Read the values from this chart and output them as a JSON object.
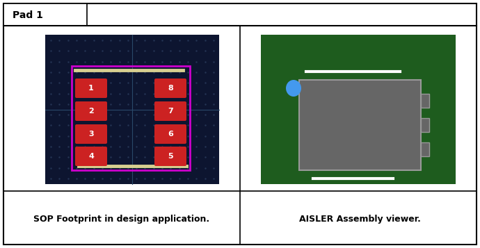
{
  "title": "Pad 1",
  "left_caption": "SOP Footprint in design application.",
  "right_caption": "AISLER Assembly viewer.",
  "bg_color": "#ffffff",
  "left_panel_bg": "#0d1530",
  "right_panel_bg": "#1e5c1e",
  "pads": [
    {
      "num": "1",
      "col": 0,
      "row": 0
    },
    {
      "num": "2",
      "col": 0,
      "row": 1
    },
    {
      "num": "3",
      "col": 0,
      "row": 2
    },
    {
      "num": "4",
      "col": 0,
      "row": 3
    },
    {
      "num": "8",
      "col": 1,
      "row": 0
    },
    {
      "num": "7",
      "col": 1,
      "row": 1
    },
    {
      "num": "6",
      "col": 1,
      "row": 2
    },
    {
      "num": "5",
      "col": 1,
      "row": 3
    }
  ],
  "pad_color": "#cc2222",
  "pad_text_color": "#ffffff",
  "crosshair_color": "#2a4a6a",
  "magenta_color": "#cc00cc",
  "yellow_color": "#d8d090",
  "gray_box_color": "#666666",
  "gray_outline_color": "#999999",
  "white_color": "#ffffff",
  "blue_dot_color": "#4499ee"
}
